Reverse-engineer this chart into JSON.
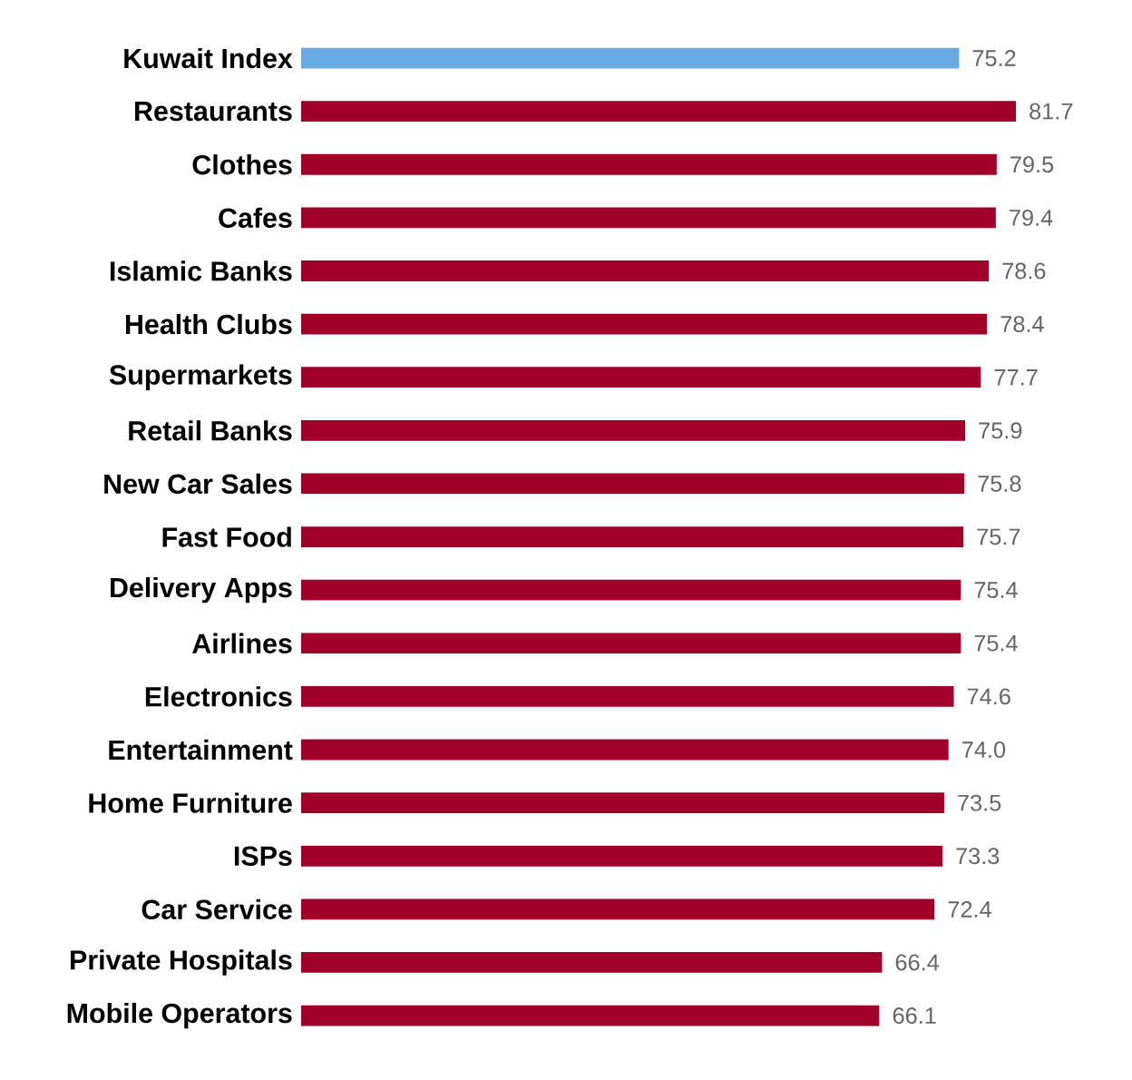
{
  "chart_data": {
    "type": "bar",
    "orientation": "horizontal",
    "value_labels": [
      "75.2",
      "81.7",
      "79.5",
      "79.4",
      "78.6",
      "78.4",
      "77.7",
      "75.9",
      "75.8",
      "75.7",
      "75.4",
      "75.4",
      "74.6",
      "74.0",
      "73.5",
      "73.3",
      "72.4",
      "66.4",
      "66.1"
    ],
    "categories": [
      "Kuwait Index",
      "Restaurants",
      "Clothes",
      "Cafes",
      "Islamic Banks",
      "Health Clubs",
      "Supermarkets",
      "Retail Banks",
      "New Car Sales",
      "Fast Food",
      "Delivery Apps",
      "Airlines",
      "Electronics",
      "Entertainment",
      "Home Furniture",
      "ISPs",
      "Car Service",
      "Private Hospitals",
      "Mobile Operators"
    ],
    "values": [
      75.2,
      81.7,
      79.5,
      79.4,
      78.6,
      78.4,
      77.7,
      75.9,
      75.8,
      75.7,
      75.4,
      75.4,
      74.6,
      74.0,
      73.5,
      73.3,
      72.4,
      66.4,
      66.1
    ],
    "colors": [
      "#6aaae2",
      "#a0002a",
      "#a0002a",
      "#a0002a",
      "#a0002a",
      "#a0002a",
      "#a0002a",
      "#a0002a",
      "#a0002a",
      "#a0002a",
      "#a0002a",
      "#a0002a",
      "#a0002a",
      "#a0002a",
      "#a0002a",
      "#a0002a",
      "#a0002a",
      "#a0002a",
      "#a0002a"
    ]
  }
}
